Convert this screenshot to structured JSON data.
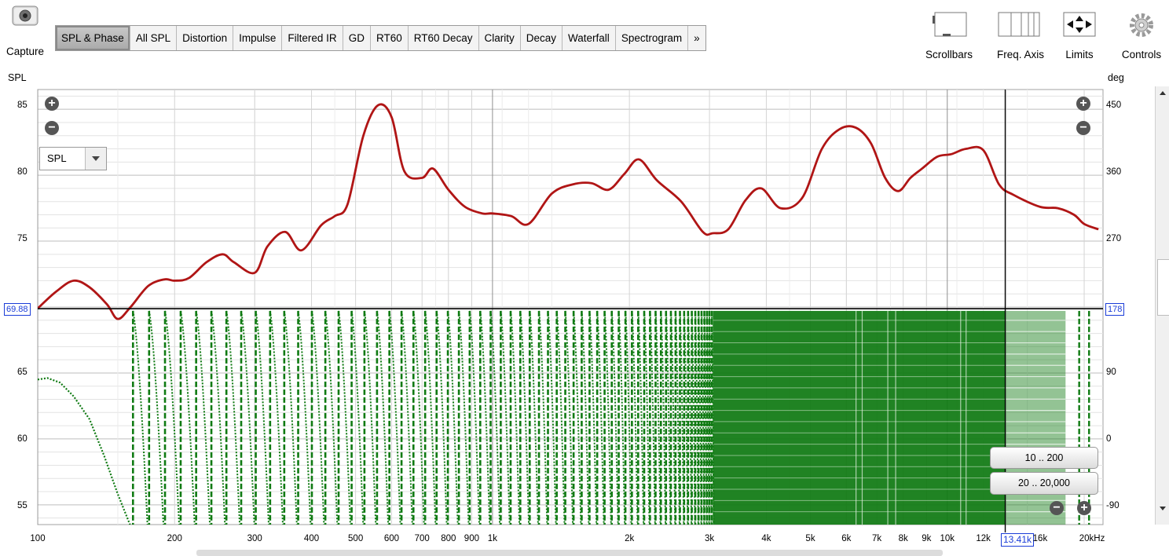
{
  "toolbar": {
    "capture_label": "Capture",
    "tabs": [
      "SPL & Phase",
      "All SPL",
      "Distortion",
      "Impulse",
      "Filtered IR",
      "GD",
      "RT60",
      "RT60 Decay",
      "Clarity",
      "Decay",
      "Waterfall",
      "Spectrogram",
      "»"
    ],
    "active_tab": "SPL & Phase",
    "right_buttons": [
      "Scrollbars",
      "Freq. Axis",
      "Limits",
      "Controls"
    ]
  },
  "axes": {
    "left_unit": "SPL",
    "right_unit": "deg",
    "left_ticks": [
      "85",
      "80",
      "75",
      "65",
      "60",
      "55"
    ],
    "right_ticks": [
      "450",
      "360",
      "270",
      "90",
      "0",
      "-90"
    ],
    "x_ticks": [
      "100",
      "200",
      "300",
      "400",
      "500",
      "600",
      "700",
      "800",
      "900",
      "1k",
      "2k",
      "3k",
      "4k",
      "5k",
      "6k",
      "7k",
      "8k",
      "9k",
      "10k",
      "12k",
      "16k",
      "20kHz"
    ],
    "spl_readout": "69.88",
    "phase_readout": "178",
    "freq_readout": "13.41k"
  },
  "controls": {
    "trace_select": "SPL",
    "range_button_1": "10 .. 200",
    "range_button_2": "20 .. 20,000"
  },
  "colors": {
    "spl_trace": "#b01515",
    "phase_trace": "#0f7a12",
    "readout": "#1a3cd8"
  },
  "chart_data": {
    "type": "line",
    "xlabel": "Hz",
    "ylabel": "SPL",
    "y2label": "deg",
    "x_scale": "log",
    "xlim": [
      100,
      22000
    ],
    "ylim": [
      53.5,
      86.5
    ],
    "y2lim": [
      -100,
      470
    ],
    "grid": true,
    "cursor_freq_hz": 13410,
    "cursor_spl": 69.88,
    "cursor_phase_deg": 178,
    "series": [
      {
        "type": "spl",
        "x": [
          100,
          110,
          120,
          130,
          142,
          150,
          160,
          175,
          190,
          200,
          215,
          235,
          255,
          270,
          300,
          320,
          350,
          380,
          420,
          450,
          480,
          520,
          560,
          600,
          640,
          700,
          740,
          800,
          870,
          950,
          1000,
          1100,
          1200,
          1350,
          1500,
          1650,
          1800,
          1950,
          2100,
          2300,
          2600,
          2900,
          3050,
          3300,
          3600,
          3900,
          4300,
          4800,
          5300,
          5800,
          6300,
          6800,
          7300,
          7800,
          8300,
          8800,
          9500,
          10200,
          11000,
          12000,
          13000,
          14000,
          16000,
          17500,
          19000,
          20000,
          21500
        ],
        "y": [
          69.9,
          71.2,
          72.0,
          71.5,
          70.2,
          69.1,
          70.0,
          71.6,
          72.1,
          72.0,
          72.2,
          73.4,
          74.0,
          73.4,
          72.6,
          74.6,
          75.7,
          74.3,
          76.2,
          76.9,
          77.8,
          83.0,
          85.3,
          84.4,
          80.3,
          79.8,
          80.5,
          78.9,
          77.6,
          77.1,
          77.1,
          76.9,
          76.3,
          78.6,
          79.3,
          79.4,
          78.9,
          80.1,
          81.2,
          79.6,
          78.0,
          75.7,
          75.6,
          75.9,
          78.1,
          79.0,
          77.5,
          78.3,
          82.0,
          83.5,
          83.6,
          82.4,
          79.8,
          78.8,
          79.8,
          80.5,
          81.4,
          81.6,
          82.0,
          81.9,
          79.3,
          78.5,
          77.6,
          77.5,
          77.0,
          76.3,
          75.9
        ],
        "name": ""
      },
      {
        "type": "phase",
        "style": "dotted, wrapping between +180 and -180 deg",
        "x": [
          100,
          105,
          112,
          120,
          130,
          140,
          150,
          162
        ],
        "y": [
          90,
          92,
          86,
          68,
          38,
          -10,
          -60,
          -110
        ],
        "name": ""
      }
    ]
  }
}
